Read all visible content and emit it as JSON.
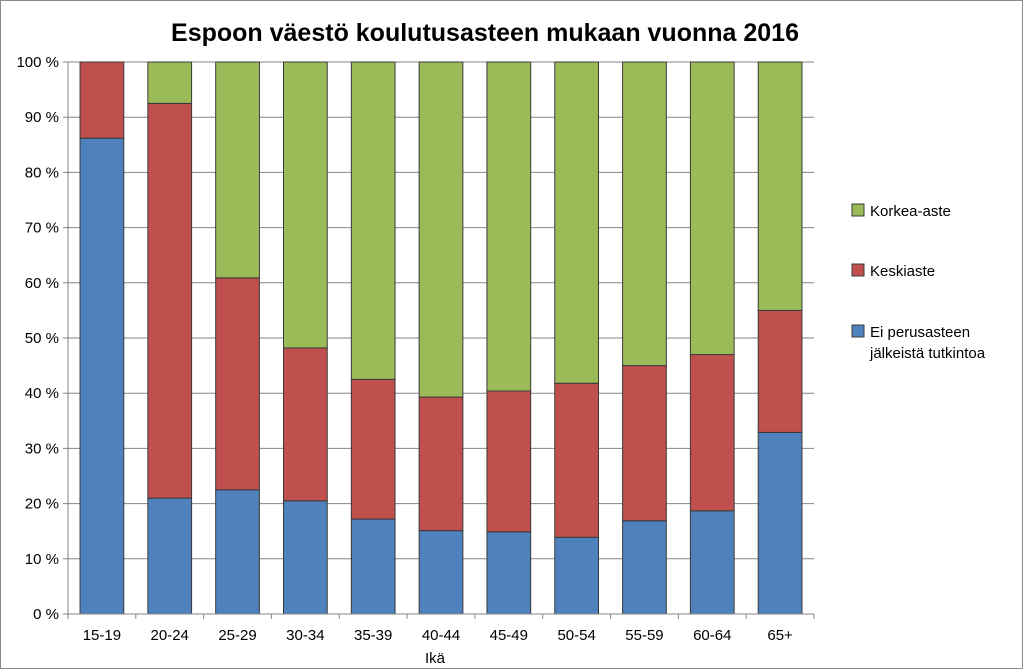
{
  "chart_data": {
    "type": "bar",
    "stacked": true,
    "percent": true,
    "title": "Espoon väestö koulutusasteen mukaan vuonna 2016",
    "xlabel": "Ikä",
    "ylabel": "",
    "ylim": [
      0,
      100
    ],
    "y_ticks": [
      "0 %",
      "10 %",
      "20 %",
      "30 %",
      "40 %",
      "50 %",
      "60 %",
      "70 %",
      "80 %",
      "90 %",
      "100 %"
    ],
    "grid": true,
    "legend_position": "right",
    "categories": [
      "15-19",
      "20-24",
      "25-29",
      "30-34",
      "35-39",
      "40-44",
      "45-49",
      "50-54",
      "55-59",
      "60-64",
      "65+"
    ],
    "series": [
      {
        "name": "Ei perusasteen jälkeistä tutkintoa",
        "legend_lines": [
          "Ei perusasteen",
          "jälkeistä tutkintoa"
        ],
        "color": "#4F81BD",
        "values": [
          86.2,
          21.0,
          22.5,
          20.5,
          17.2,
          15.1,
          14.9,
          13.9,
          16.9,
          18.7,
          32.9
        ]
      },
      {
        "name": "Keskiaste",
        "legend_lines": [
          "Keskiaste"
        ],
        "color": "#C0504D",
        "values": [
          13.8,
          71.5,
          38.4,
          27.7,
          25.3,
          24.2,
          25.5,
          27.9,
          28.1,
          28.3,
          22.1
        ]
      },
      {
        "name": "Korkea-aste",
        "legend_lines": [
          "Korkea-aste"
        ],
        "color": "#9BBB59",
        "values": [
          0.0,
          7.5,
          39.1,
          51.8,
          57.5,
          60.7,
          59.6,
          58.2,
          55.0,
          53.0,
          45.0
        ]
      }
    ]
  }
}
